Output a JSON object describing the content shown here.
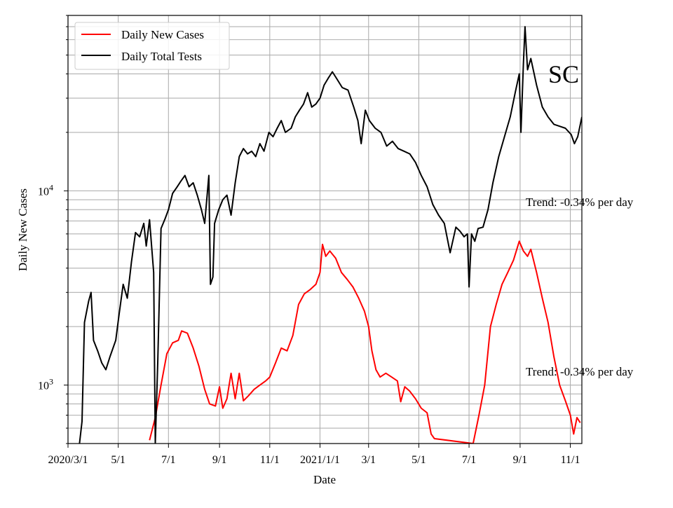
{
  "chart_data": {
    "type": "line",
    "title": "",
    "state_label": "SC",
    "xlabel": "Date",
    "ylabel": "Daily New Cases",
    "yscale": "log",
    "ylim": [
      500,
      80000
    ],
    "xlim": [
      "2020-03-01",
      "2021-11-15"
    ],
    "grid": true,
    "legend_position": "upper-left",
    "x_ticks": [
      {
        "date": "2020-03-01",
        "label": "2020/3/1"
      },
      {
        "date": "2020-05-01",
        "label": "5/1"
      },
      {
        "date": "2020-07-01",
        "label": "7/1"
      },
      {
        "date": "2020-09-01",
        "label": "9/1"
      },
      {
        "date": "2020-11-01",
        "label": "11/1"
      },
      {
        "date": "2021-01-01",
        "label": "2021/1/1"
      },
      {
        "date": "2021-03-01",
        "label": "3/1"
      },
      {
        "date": "2021-05-01",
        "label": "5/1"
      },
      {
        "date": "2021-07-01",
        "label": "7/1"
      },
      {
        "date": "2021-09-01",
        "label": "9/1"
      },
      {
        "date": "2021-11-01",
        "label": "11/1"
      }
    ],
    "y_ticks": [
      {
        "value": 1000,
        "base": "10",
        "exp": "3"
      },
      {
        "value": 10000,
        "base": "10",
        "exp": "4"
      }
    ],
    "annotations": [
      {
        "text": "Trend: -0.34% per day",
        "series": "Daily Total Tests"
      },
      {
        "text": "Trend: -0.34% per day",
        "series": "Daily New Cases"
      }
    ],
    "series": [
      {
        "name": "Daily New Cases",
        "color": "#ff0000",
        "points": [
          [
            "2020-06-08",
            520
          ],
          [
            "2020-06-15",
            680
          ],
          [
            "2020-06-22",
            1000
          ],
          [
            "2020-06-29",
            1450
          ],
          [
            "2020-07-06",
            1650
          ],
          [
            "2020-07-13",
            1700
          ],
          [
            "2020-07-17",
            1900
          ],
          [
            "2020-07-24",
            1850
          ],
          [
            "2020-07-31",
            1550
          ],
          [
            "2020-08-07",
            1250
          ],
          [
            "2020-08-14",
            950
          ],
          [
            "2020-08-20",
            800
          ],
          [
            "2020-08-27",
            780
          ],
          [
            "2020-09-01",
            980
          ],
          [
            "2020-09-05",
            760
          ],
          [
            "2020-09-10",
            850
          ],
          [
            "2020-09-15",
            1150
          ],
          [
            "2020-09-20",
            850
          ],
          [
            "2020-09-25",
            1150
          ],
          [
            "2020-09-30",
            830
          ],
          [
            "2020-10-06",
            880
          ],
          [
            "2020-10-13",
            950
          ],
          [
            "2020-10-20",
            1000
          ],
          [
            "2020-10-27",
            1050
          ],
          [
            "2020-11-01",
            1100
          ],
          [
            "2020-11-08",
            1300
          ],
          [
            "2020-11-15",
            1550
          ],
          [
            "2020-11-22",
            1500
          ],
          [
            "2020-11-29",
            1800
          ],
          [
            "2020-12-06",
            2600
          ],
          [
            "2020-12-13",
            2950
          ],
          [
            "2020-12-20",
            3100
          ],
          [
            "2020-12-27",
            3300
          ],
          [
            "2021-01-01",
            3800
          ],
          [
            "2021-01-04",
            5300
          ],
          [
            "2021-01-08",
            4600
          ],
          [
            "2021-01-13",
            4900
          ],
          [
            "2021-01-20",
            4500
          ],
          [
            "2021-01-27",
            3800
          ],
          [
            "2021-02-03",
            3500
          ],
          [
            "2021-02-10",
            3200
          ],
          [
            "2021-02-17",
            2800
          ],
          [
            "2021-02-24",
            2400
          ],
          [
            "2021-03-01",
            2000
          ],
          [
            "2021-03-05",
            1500
          ],
          [
            "2021-03-10",
            1200
          ],
          [
            "2021-03-15",
            1100
          ],
          [
            "2021-03-22",
            1150
          ],
          [
            "2021-03-29",
            1100
          ],
          [
            "2021-04-05",
            1050
          ],
          [
            "2021-04-09",
            820
          ],
          [
            "2021-04-14",
            980
          ],
          [
            "2021-04-20",
            930
          ],
          [
            "2021-04-27",
            850
          ],
          [
            "2021-05-04",
            760
          ],
          [
            "2021-05-11",
            720
          ],
          [
            "2021-05-16",
            560
          ],
          [
            "2021-05-20",
            530
          ],
          [
            "2021-07-06",
            500
          ],
          [
            "2021-07-13",
            700
          ],
          [
            "2021-07-20",
            1000
          ],
          [
            "2021-07-27",
            2000
          ],
          [
            "2021-08-03",
            2600
          ],
          [
            "2021-08-10",
            3300
          ],
          [
            "2021-08-17",
            3800
          ],
          [
            "2021-08-24",
            4400
          ],
          [
            "2021-08-31",
            5500
          ],
          [
            "2021-09-05",
            4900
          ],
          [
            "2021-09-10",
            4600
          ],
          [
            "2021-09-14",
            5000
          ],
          [
            "2021-09-21",
            3800
          ],
          [
            "2021-09-28",
            2800
          ],
          [
            "2021-10-05",
            2100
          ],
          [
            "2021-10-12",
            1400
          ],
          [
            "2021-10-19",
            1000
          ],
          [
            "2021-10-26",
            830
          ],
          [
            "2021-11-01",
            700
          ],
          [
            "2021-11-05",
            560
          ],
          [
            "2021-11-09",
            680
          ],
          [
            "2021-11-13",
            640
          ]
        ]
      },
      {
        "name": "Daily Total Tests",
        "color": "#000000",
        "points": [
          [
            "2020-03-15",
            500
          ],
          [
            "2020-03-18",
            650
          ],
          [
            "2020-03-21",
            2100
          ],
          [
            "2020-03-26",
            2700
          ],
          [
            "2020-03-29",
            3000
          ],
          [
            "2020-04-01",
            1700
          ],
          [
            "2020-04-06",
            1500
          ],
          [
            "2020-04-11",
            1300
          ],
          [
            "2020-04-16",
            1200
          ],
          [
            "2020-04-21",
            1400
          ],
          [
            "2020-04-28",
            1700
          ],
          [
            "2020-05-02",
            2300
          ],
          [
            "2020-05-07",
            3300
          ],
          [
            "2020-05-12",
            2800
          ],
          [
            "2020-05-17",
            4300
          ],
          [
            "2020-05-22",
            6100
          ],
          [
            "2020-05-27",
            5800
          ],
          [
            "2020-06-01",
            6800
          ],
          [
            "2020-06-04",
            5200
          ],
          [
            "2020-06-08",
            7100
          ],
          [
            "2020-06-13",
            3800
          ],
          [
            "2020-06-15",
            500
          ],
          [
            "2020-06-18",
            1300
          ],
          [
            "2020-06-22",
            6400
          ],
          [
            "2020-06-27",
            7200
          ],
          [
            "2020-07-01",
            8000
          ],
          [
            "2020-07-06",
            9700
          ],
          [
            "2020-07-11",
            10400
          ],
          [
            "2020-07-16",
            11200
          ],
          [
            "2020-07-21",
            12000
          ],
          [
            "2020-07-26",
            10500
          ],
          [
            "2020-07-31",
            11000
          ],
          [
            "2020-08-05",
            9500
          ],
          [
            "2020-08-10",
            8000
          ],
          [
            "2020-08-14",
            6800
          ],
          [
            "2020-08-19",
            12000
          ],
          [
            "2020-08-21",
            3300
          ],
          [
            "2020-08-24",
            3600
          ],
          [
            "2020-08-26",
            6800
          ],
          [
            "2020-08-31",
            8000
          ],
          [
            "2020-09-05",
            9000
          ],
          [
            "2020-09-10",
            9500
          ],
          [
            "2020-09-15",
            7500
          ],
          [
            "2020-09-20",
            11000
          ],
          [
            "2020-09-25",
            15000
          ],
          [
            "2020-09-30",
            16500
          ],
          [
            "2020-10-05",
            15500
          ],
          [
            "2020-10-10",
            16000
          ],
          [
            "2020-10-15",
            15000
          ],
          [
            "2020-10-20",
            17500
          ],
          [
            "2020-10-25",
            16000
          ],
          [
            "2020-10-31",
            20000
          ],
          [
            "2020-11-05",
            19000
          ],
          [
            "2020-11-10",
            21000
          ],
          [
            "2020-11-15",
            23000
          ],
          [
            "2020-11-20",
            20000
          ],
          [
            "2020-11-27",
            21000
          ],
          [
            "2020-12-02",
            24000
          ],
          [
            "2020-12-07",
            26000
          ],
          [
            "2020-12-12",
            28000
          ],
          [
            "2020-12-17",
            32000
          ],
          [
            "2020-12-22",
            27000
          ],
          [
            "2020-12-27",
            28000
          ],
          [
            "2021-01-01",
            30000
          ],
          [
            "2021-01-06",
            35000
          ],
          [
            "2021-01-11",
            38000
          ],
          [
            "2021-01-16",
            41000
          ],
          [
            "2021-01-21",
            38000
          ],
          [
            "2021-01-28",
            34000
          ],
          [
            "2021-02-04",
            33000
          ],
          [
            "2021-02-11",
            27000
          ],
          [
            "2021-02-16",
            23000
          ],
          [
            "2021-02-20",
            17500
          ],
          [
            "2021-02-25",
            26000
          ],
          [
            "2021-03-02",
            23000
          ],
          [
            "2021-03-09",
            21000
          ],
          [
            "2021-03-16",
            20000
          ],
          [
            "2021-03-23",
            17000
          ],
          [
            "2021-03-30",
            18000
          ],
          [
            "2021-04-06",
            16500
          ],
          [
            "2021-04-13",
            16000
          ],
          [
            "2021-04-20",
            15500
          ],
          [
            "2021-04-27",
            14000
          ],
          [
            "2021-05-04",
            12000
          ],
          [
            "2021-05-11",
            10500
          ],
          [
            "2021-05-18",
            8500
          ],
          [
            "2021-05-25",
            7500
          ],
          [
            "2021-06-01",
            6800
          ],
          [
            "2021-06-08",
            4800
          ],
          [
            "2021-06-15",
            6500
          ],
          [
            "2021-06-20",
            6200
          ],
          [
            "2021-06-25",
            5800
          ],
          [
            "2021-06-29",
            6000
          ],
          [
            "2021-07-01",
            3200
          ],
          [
            "2021-07-04",
            6000
          ],
          [
            "2021-07-08",
            5500
          ],
          [
            "2021-07-12",
            6400
          ],
          [
            "2021-07-18",
            6500
          ],
          [
            "2021-07-24",
            8000
          ],
          [
            "2021-07-30",
            11000
          ],
          [
            "2021-08-06",
            15000
          ],
          [
            "2021-08-13",
            19000
          ],
          [
            "2021-08-20",
            24000
          ],
          [
            "2021-08-26",
            32000
          ],
          [
            "2021-08-31",
            40000
          ],
          [
            "2021-09-02",
            20000
          ],
          [
            "2021-09-05",
            45000
          ],
          [
            "2021-09-07",
            70000
          ],
          [
            "2021-09-10",
            42000
          ],
          [
            "2021-09-14",
            48000
          ],
          [
            "2021-09-21",
            35000
          ],
          [
            "2021-09-28",
            27000
          ],
          [
            "2021-10-05",
            24000
          ],
          [
            "2021-10-12",
            22000
          ],
          [
            "2021-10-19",
            21500
          ],
          [
            "2021-10-26",
            21000
          ],
          [
            "2021-11-02",
            19500
          ],
          [
            "2021-11-06",
            17500
          ],
          [
            "2021-11-10",
            19000
          ],
          [
            "2021-11-15",
            24000
          ]
        ]
      }
    ]
  }
}
